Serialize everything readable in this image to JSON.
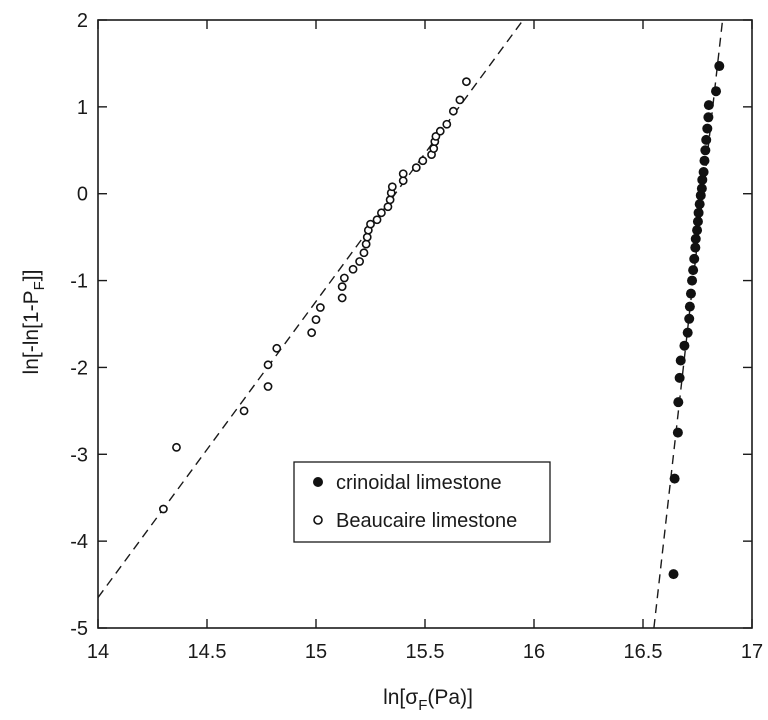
{
  "chart_data": {
    "type": "scatter",
    "title": "",
    "xlabel": {
      "prefix": "ln[σ",
      "sub": "F",
      "suffix": "(Pa)]"
    },
    "ylabel": {
      "prefix": "ln[-ln[1-P",
      "sub": "F",
      "suffix": "]]"
    },
    "xlim": [
      14,
      17
    ],
    "ylim": [
      -5,
      2
    ],
    "x_ticks": [
      14,
      14.5,
      15,
      15.5,
      16,
      16.5,
      17
    ],
    "x_tick_labels": [
      "14",
      "14.5",
      "15",
      "15.5",
      "16",
      "16.5",
      "17"
    ],
    "y_ticks": [
      -5,
      -4,
      -3,
      -2,
      -1,
      0,
      1,
      2
    ],
    "y_tick_labels": [
      "-5",
      "-4",
      "-3",
      "-2",
      "-1",
      "0",
      "1",
      "2"
    ],
    "grid": false,
    "legend_position": "center",
    "series": [
      {
        "name": "crinoidal limestone",
        "marker": "filled-circle",
        "color": "#111111",
        "points": [
          [
            16.64,
            -4.38
          ],
          [
            16.645,
            -3.28
          ],
          [
            16.66,
            -2.75
          ],
          [
            16.662,
            -2.4
          ],
          [
            16.668,
            -2.12
          ],
          [
            16.673,
            -1.92
          ],
          [
            16.69,
            -1.75
          ],
          [
            16.705,
            -1.6
          ],
          [
            16.712,
            -1.44
          ],
          [
            16.715,
            -1.3
          ],
          [
            16.72,
            -1.15
          ],
          [
            16.725,
            -1.0
          ],
          [
            16.73,
            -0.88
          ],
          [
            16.735,
            -0.75
          ],
          [
            16.74,
            -0.62
          ],
          [
            16.742,
            -0.52
          ],
          [
            16.748,
            -0.42
          ],
          [
            16.752,
            -0.32
          ],
          [
            16.755,
            -0.22
          ],
          [
            16.76,
            -0.12
          ],
          [
            16.765,
            -0.02
          ],
          [
            16.77,
            0.06
          ],
          [
            16.772,
            0.16
          ],
          [
            16.778,
            0.25
          ],
          [
            16.782,
            0.38
          ],
          [
            16.786,
            0.5
          ],
          [
            16.79,
            0.62
          ],
          [
            16.795,
            0.75
          ],
          [
            16.8,
            0.88
          ],
          [
            16.802,
            1.02
          ],
          [
            16.835,
            1.18
          ],
          [
            16.85,
            1.47
          ]
        ]
      },
      {
        "name": "Beaucaire limestone",
        "marker": "open-circle",
        "color": "#111111",
        "points": [
          [
            14.3,
            -3.63
          ],
          [
            14.36,
            -2.92
          ],
          [
            14.67,
            -2.5
          ],
          [
            14.78,
            -2.22
          ],
          [
            14.78,
            -1.97
          ],
          [
            14.82,
            -1.78
          ],
          [
            14.98,
            -1.6
          ],
          [
            15.0,
            -1.45
          ],
          [
            15.02,
            -1.31
          ],
          [
            15.12,
            -1.2
          ],
          [
            15.12,
            -1.07
          ],
          [
            15.13,
            -0.97
          ],
          [
            15.17,
            -0.87
          ],
          [
            15.2,
            -0.78
          ],
          [
            15.22,
            -0.68
          ],
          [
            15.23,
            -0.58
          ],
          [
            15.235,
            -0.5
          ],
          [
            15.24,
            -0.42
          ],
          [
            15.25,
            -0.35
          ],
          [
            15.28,
            -0.3
          ],
          [
            15.3,
            -0.22
          ],
          [
            15.33,
            -0.15
          ],
          [
            15.34,
            -0.07
          ],
          [
            15.345,
            0.01
          ],
          [
            15.35,
            0.08
          ],
          [
            15.4,
            0.15
          ],
          [
            15.4,
            0.23
          ],
          [
            15.46,
            0.3
          ],
          [
            15.49,
            0.38
          ],
          [
            15.53,
            0.45
          ],
          [
            15.54,
            0.52
          ],
          [
            15.545,
            0.6
          ],
          [
            15.55,
            0.66
          ],
          [
            15.57,
            0.72
          ],
          [
            15.6,
            0.8
          ],
          [
            15.63,
            0.95
          ],
          [
            15.66,
            1.08
          ],
          [
            15.69,
            1.29
          ]
        ]
      }
    ],
    "fit_lines": [
      {
        "style": "dashed",
        "from": [
          14.0,
          -4.65
        ],
        "to": [
          15.95,
          2.0
        ]
      },
      {
        "style": "dashed",
        "from": [
          16.55,
          -5.0
        ],
        "to": [
          16.865,
          2.0
        ]
      }
    ]
  }
}
